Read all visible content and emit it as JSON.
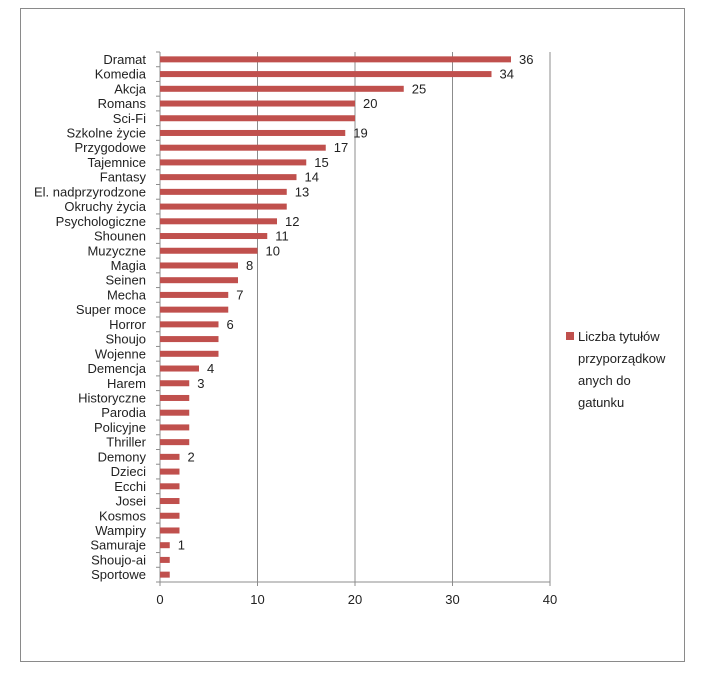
{
  "chart_data": {
    "type": "bar",
    "orientation": "horizontal",
    "categories": [
      "Dramat",
      "Komedia",
      "Akcja",
      "Romans",
      "Sci-Fi",
      "Szkolne życie",
      "Przygodowe",
      "Tajemnice",
      "Fantasy",
      "El. nadprzyrodzone",
      "Okruchy życia",
      "Psychologiczne",
      "Shounen",
      "Muzyczne",
      "Magia",
      "Seinen",
      "Mecha",
      "Super moce",
      "Horror",
      "Shoujo",
      "Wojenne",
      "Demencja",
      "Harem",
      "Historyczne",
      "Parodia",
      "Policyjne",
      "Thriller",
      "Demony",
      "Dzieci",
      "Ecchi",
      "Josei",
      "Kosmos",
      "Wampiry",
      "Samuraje",
      "Shoujo-ai",
      "Sportowe"
    ],
    "series": [
      {
        "name": "Liczba tytułów przyporządkowanych do gatunku",
        "values": [
          36,
          34,
          25,
          20,
          20,
          19,
          17,
          15,
          14,
          13,
          13,
          12,
          11,
          10,
          8,
          8,
          7,
          7,
          6,
          6,
          6,
          4,
          3,
          3,
          3,
          3,
          3,
          2,
          2,
          2,
          2,
          2,
          2,
          1,
          1,
          1
        ],
        "color": "#c0504d"
      }
    ],
    "data_labels": [
      {
        "category": "Dramat",
        "text": "36"
      },
      {
        "category": "Komedia",
        "text": "34"
      },
      {
        "category": "Akcja",
        "text": "25"
      },
      {
        "category": "Romans",
        "text": "20"
      },
      {
        "category": "Szkolne życie",
        "text": "19"
      },
      {
        "category": "Przygodowe",
        "text": "17"
      },
      {
        "category": "Tajemnice",
        "text": "15"
      },
      {
        "category": "Fantasy",
        "text": "14"
      },
      {
        "category": "El. nadprzyrodzone",
        "text": "13"
      },
      {
        "category": "Psychologiczne",
        "text": "12"
      },
      {
        "category": "Shounen",
        "text": "11"
      },
      {
        "category": "Muzyczne",
        "text": "10"
      },
      {
        "category": "Magia",
        "text": "8"
      },
      {
        "category": "Mecha",
        "text": "7"
      },
      {
        "category": "Horror",
        "text": "6"
      },
      {
        "category": "Demencja",
        "text": "4"
      },
      {
        "category": "Harem",
        "text": "3"
      },
      {
        "category": "Demony",
        "text": "2"
      },
      {
        "category": "Samuraje",
        "text": "1"
      }
    ],
    "x_ticks": [
      "0",
      "10",
      "20",
      "30",
      "40"
    ],
    "xlim": [
      0,
      40
    ],
    "grid": true,
    "legend_position": "right",
    "legend_lines": [
      "Liczba tytułów",
      "przyporządkow",
      "anych do",
      "gatunku"
    ]
  }
}
